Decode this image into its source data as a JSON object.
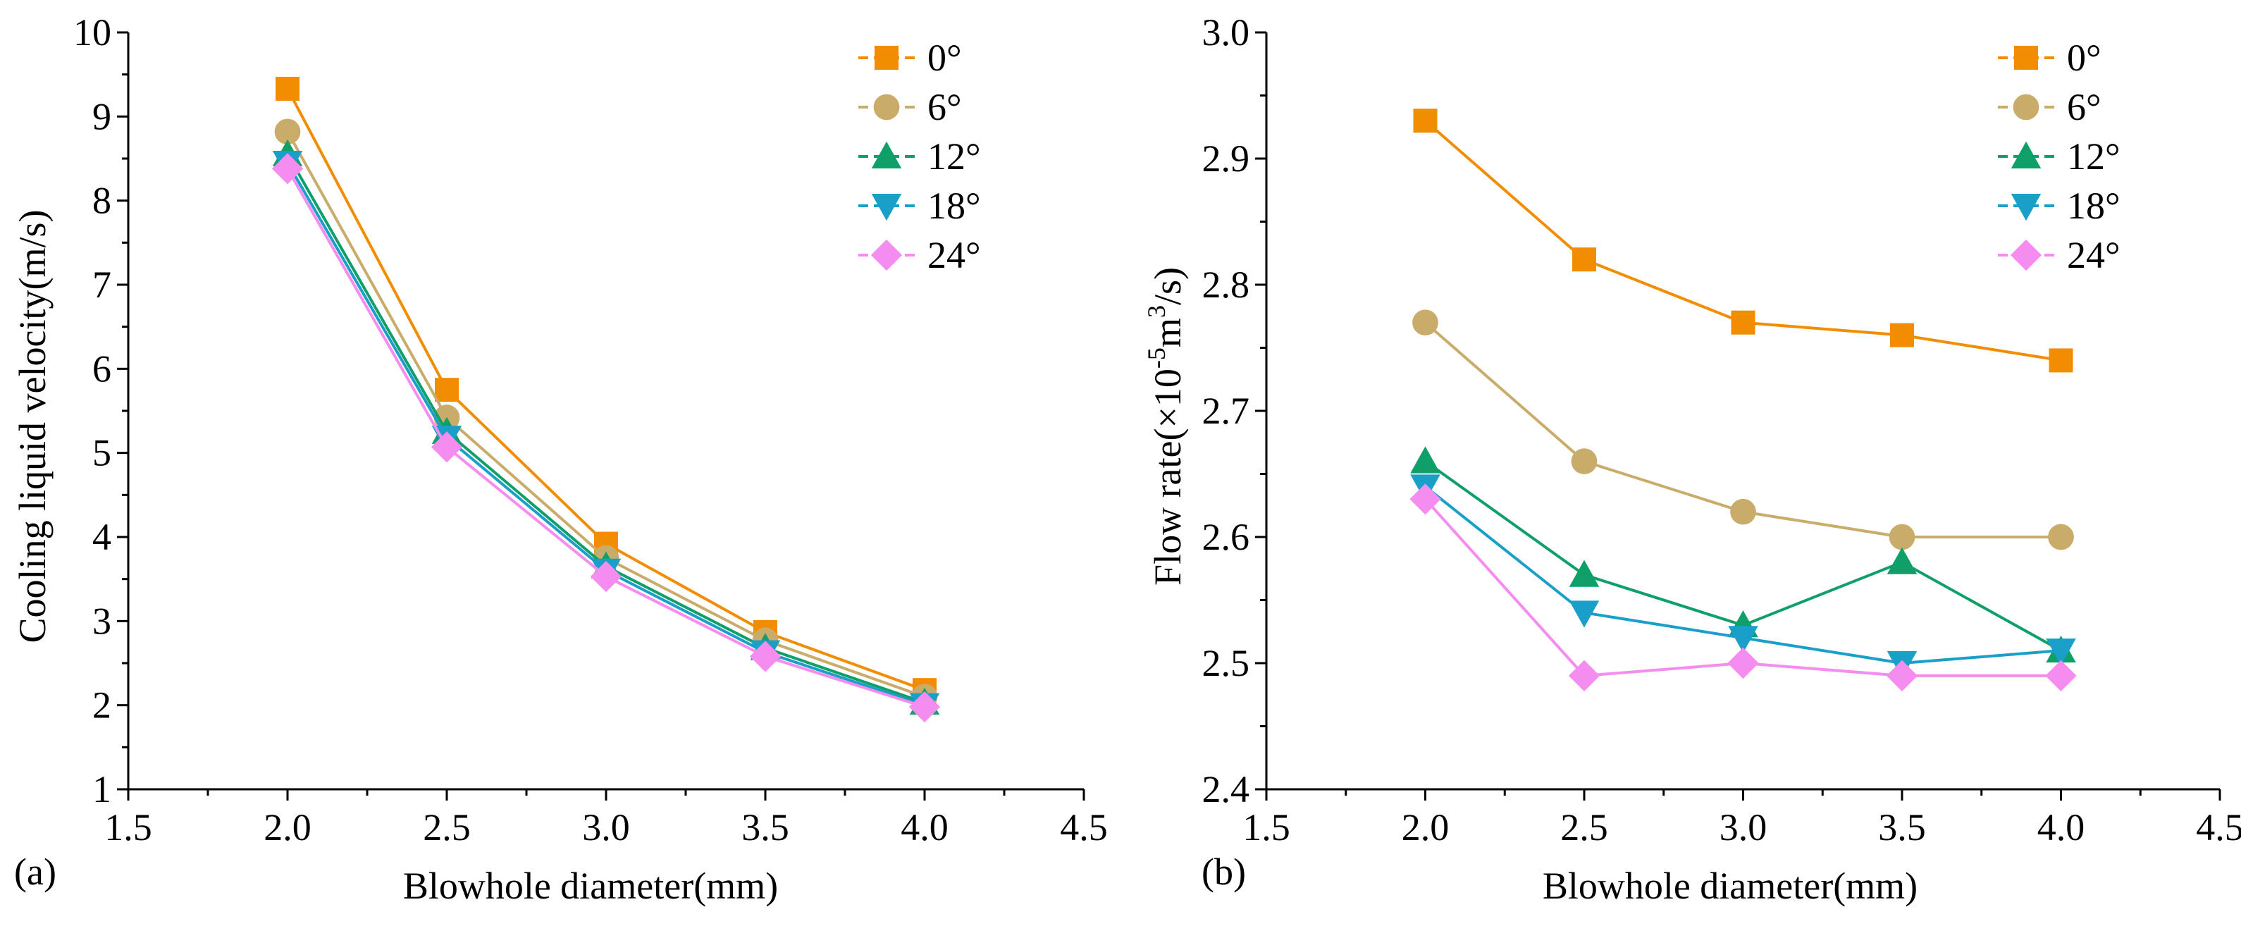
{
  "chart_data": [
    {
      "type": "line",
      "panel_label": "(a)",
      "xlabel": "Blowhole diameter(mm)",
      "ylabel": "Cooling liquid velocity(m/s)",
      "xlim": [
        1.5,
        4.5
      ],
      "ylim": [
        1,
        10
      ],
      "xticks": [
        "1.5",
        "2.0",
        "2.5",
        "3.0",
        "3.5",
        "4.0",
        "4.5"
      ],
      "yticks": [
        "1",
        "2",
        "3",
        "4",
        "5",
        "6",
        "7",
        "8",
        "9",
        "10"
      ],
      "x": [
        2.0,
        2.5,
        3.0,
        3.5,
        4.0
      ],
      "legend_position": "top-right",
      "series": [
        {
          "name": "0°",
          "marker": "square",
          "color": "#F28C00",
          "line_color": "#F28C00",
          "values": [
            9.33,
            5.75,
            3.92,
            2.87,
            2.18
          ]
        },
        {
          "name": "6°",
          "marker": "circle",
          "color": "#C9AC6A",
          "line_color": "#C9AC6A",
          "values": [
            8.82,
            5.42,
            3.75,
            2.77,
            2.1
          ]
        },
        {
          "name": "12°",
          "marker": "triangle-up",
          "color": "#0FA06A",
          "line_color": "#0FA06A",
          "values": [
            8.55,
            5.25,
            3.65,
            2.68,
            2.03
          ]
        },
        {
          "name": "18°",
          "marker": "triangle-down",
          "color": "#1AA0C8",
          "line_color": "#1AA0C8",
          "values": [
            8.45,
            5.18,
            3.6,
            2.63,
            2.0
          ]
        },
        {
          "name": "24°",
          "marker": "diamond",
          "color": "#F58CF0",
          "line_color": "#F58CF0",
          "values": [
            8.38,
            5.07,
            3.53,
            2.58,
            1.98
          ]
        }
      ]
    },
    {
      "type": "line",
      "panel_label": "(b)",
      "xlabel": "Blowhole diameter(mm)",
      "ylabel_prefix": "Flow rate(×10",
      "ylabel_exp1": "-5",
      "ylabel_mid": "m",
      "ylabel_exp2": "3",
      "ylabel_suffix": "/s)",
      "xlim": [
        1.5,
        4.5
      ],
      "ylim": [
        2.4,
        3.0
      ],
      "xticks": [
        "1.5",
        "2.0",
        "2.5",
        "3.0",
        "3.5",
        "4.0",
        "4.5"
      ],
      "yticks": [
        "2.4",
        "2.5",
        "2.6",
        "2.7",
        "2.8",
        "2.9",
        "3.0"
      ],
      "x": [
        2.0,
        2.5,
        3.0,
        3.5,
        4.0
      ],
      "legend_position": "top-right",
      "series": [
        {
          "name": "0°",
          "marker": "square",
          "color": "#F28C00",
          "line_color": "#F28C00",
          "values": [
            2.93,
            2.82,
            2.77,
            2.76,
            2.74
          ]
        },
        {
          "name": "6°",
          "marker": "circle",
          "color": "#C9AC6A",
          "line_color": "#C9AC6A",
          "values": [
            2.77,
            2.66,
            2.62,
            2.6,
            2.6
          ]
        },
        {
          "name": "12°",
          "marker": "triangle-up",
          "color": "#0FA06A",
          "line_color": "#0FA06A",
          "values": [
            2.66,
            2.57,
            2.53,
            2.58,
            2.51
          ]
        },
        {
          "name": "18°",
          "marker": "triangle-down",
          "color": "#1AA0C8",
          "line_color": "#1AA0C8",
          "values": [
            2.64,
            2.54,
            2.52,
            2.5,
            2.51
          ]
        },
        {
          "name": "24°",
          "marker": "diamond",
          "color": "#F58CF0",
          "line_color": "#F58CF0",
          "values": [
            2.63,
            2.49,
            2.5,
            2.49,
            2.49
          ]
        }
      ]
    }
  ]
}
